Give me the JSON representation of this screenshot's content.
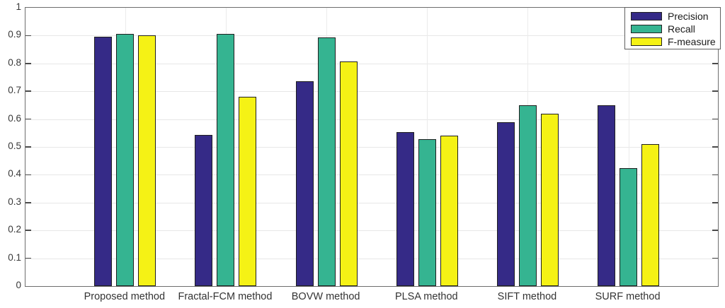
{
  "chart_data": {
    "type": "bar",
    "title": "",
    "xlabel": "",
    "ylabel": "",
    "categories": [
      "Proposed method",
      "Fractal-FCM method",
      "BOVW method",
      "PLSA method",
      "SIFT method",
      "SURF method"
    ],
    "series": [
      {
        "name": "Precision",
        "color": "#352a87",
        "values": [
          0.895,
          0.544,
          0.735,
          0.553,
          0.588,
          0.649
        ]
      },
      {
        "name": "Recall",
        "color": "#35b491",
        "values": [
          0.907,
          0.907,
          0.894,
          0.528,
          0.651,
          0.425
        ]
      },
      {
        "name": "F-measure",
        "color": "#f5f215",
        "values": [
          0.9,
          0.679,
          0.806,
          0.541,
          0.619,
          0.511
        ]
      }
    ],
    "ylim": [
      0,
      1
    ],
    "yticks": [
      0,
      0.1,
      0.2,
      0.3,
      0.4,
      0.5,
      0.6,
      0.7,
      0.8,
      0.9,
      1
    ],
    "ytick_labels": [
      "0",
      "0.1",
      "0.2",
      "0.3",
      "0.4",
      "0.5",
      "0.6",
      "0.7",
      "0.8",
      "0.9",
      "1"
    ],
    "grid": true,
    "legend_position": "top-right",
    "colors": {
      "axis_border": "#6e6e6e",
      "grid_line": "#e7e7e7",
      "tick_mark": "#4a4a4a",
      "bar_edge": "#1f1f1f",
      "text": "#333333",
      "background": "#ffffff"
    }
  }
}
